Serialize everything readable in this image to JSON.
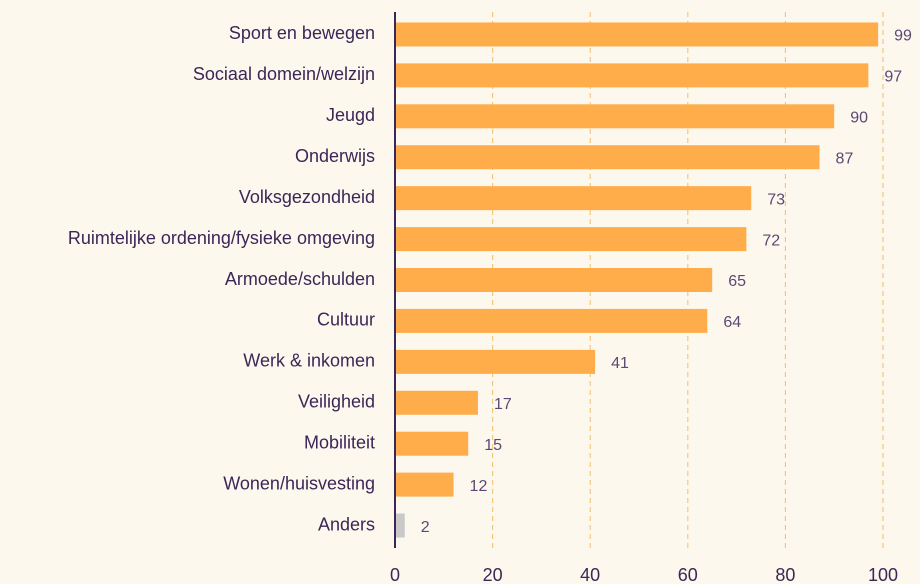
{
  "chart_data": {
    "type": "barh",
    "categories": [
      "Sport en bewegen",
      "Sociaal domein/welzijn",
      "Jeugd",
      "Onderwijs",
      "Volksgezondheid",
      "Ruimtelijke ordening/fysieke omgeving",
      "Armoede/schulden",
      "Cultuur",
      "Werk & inkomen",
      "Veiligheid",
      "Mobiliteit",
      "Wonen/huisvesting",
      "Anders"
    ],
    "values": [
      99,
      97,
      90,
      87,
      73,
      72,
      65,
      64,
      41,
      17,
      15,
      12,
      2
    ],
    "colors": [
      "#ffad4a",
      "#ffad4a",
      "#ffad4a",
      "#ffad4a",
      "#ffad4a",
      "#ffad4a",
      "#ffad4a",
      "#ffad4a",
      "#ffad4a",
      "#ffad4a",
      "#ffad4a",
      "#ffad4a",
      "#c9c9c9"
    ],
    "xlim": [
      0,
      100
    ],
    "xticks": [
      0,
      20,
      40,
      60,
      80,
      100
    ],
    "grid": true
  }
}
